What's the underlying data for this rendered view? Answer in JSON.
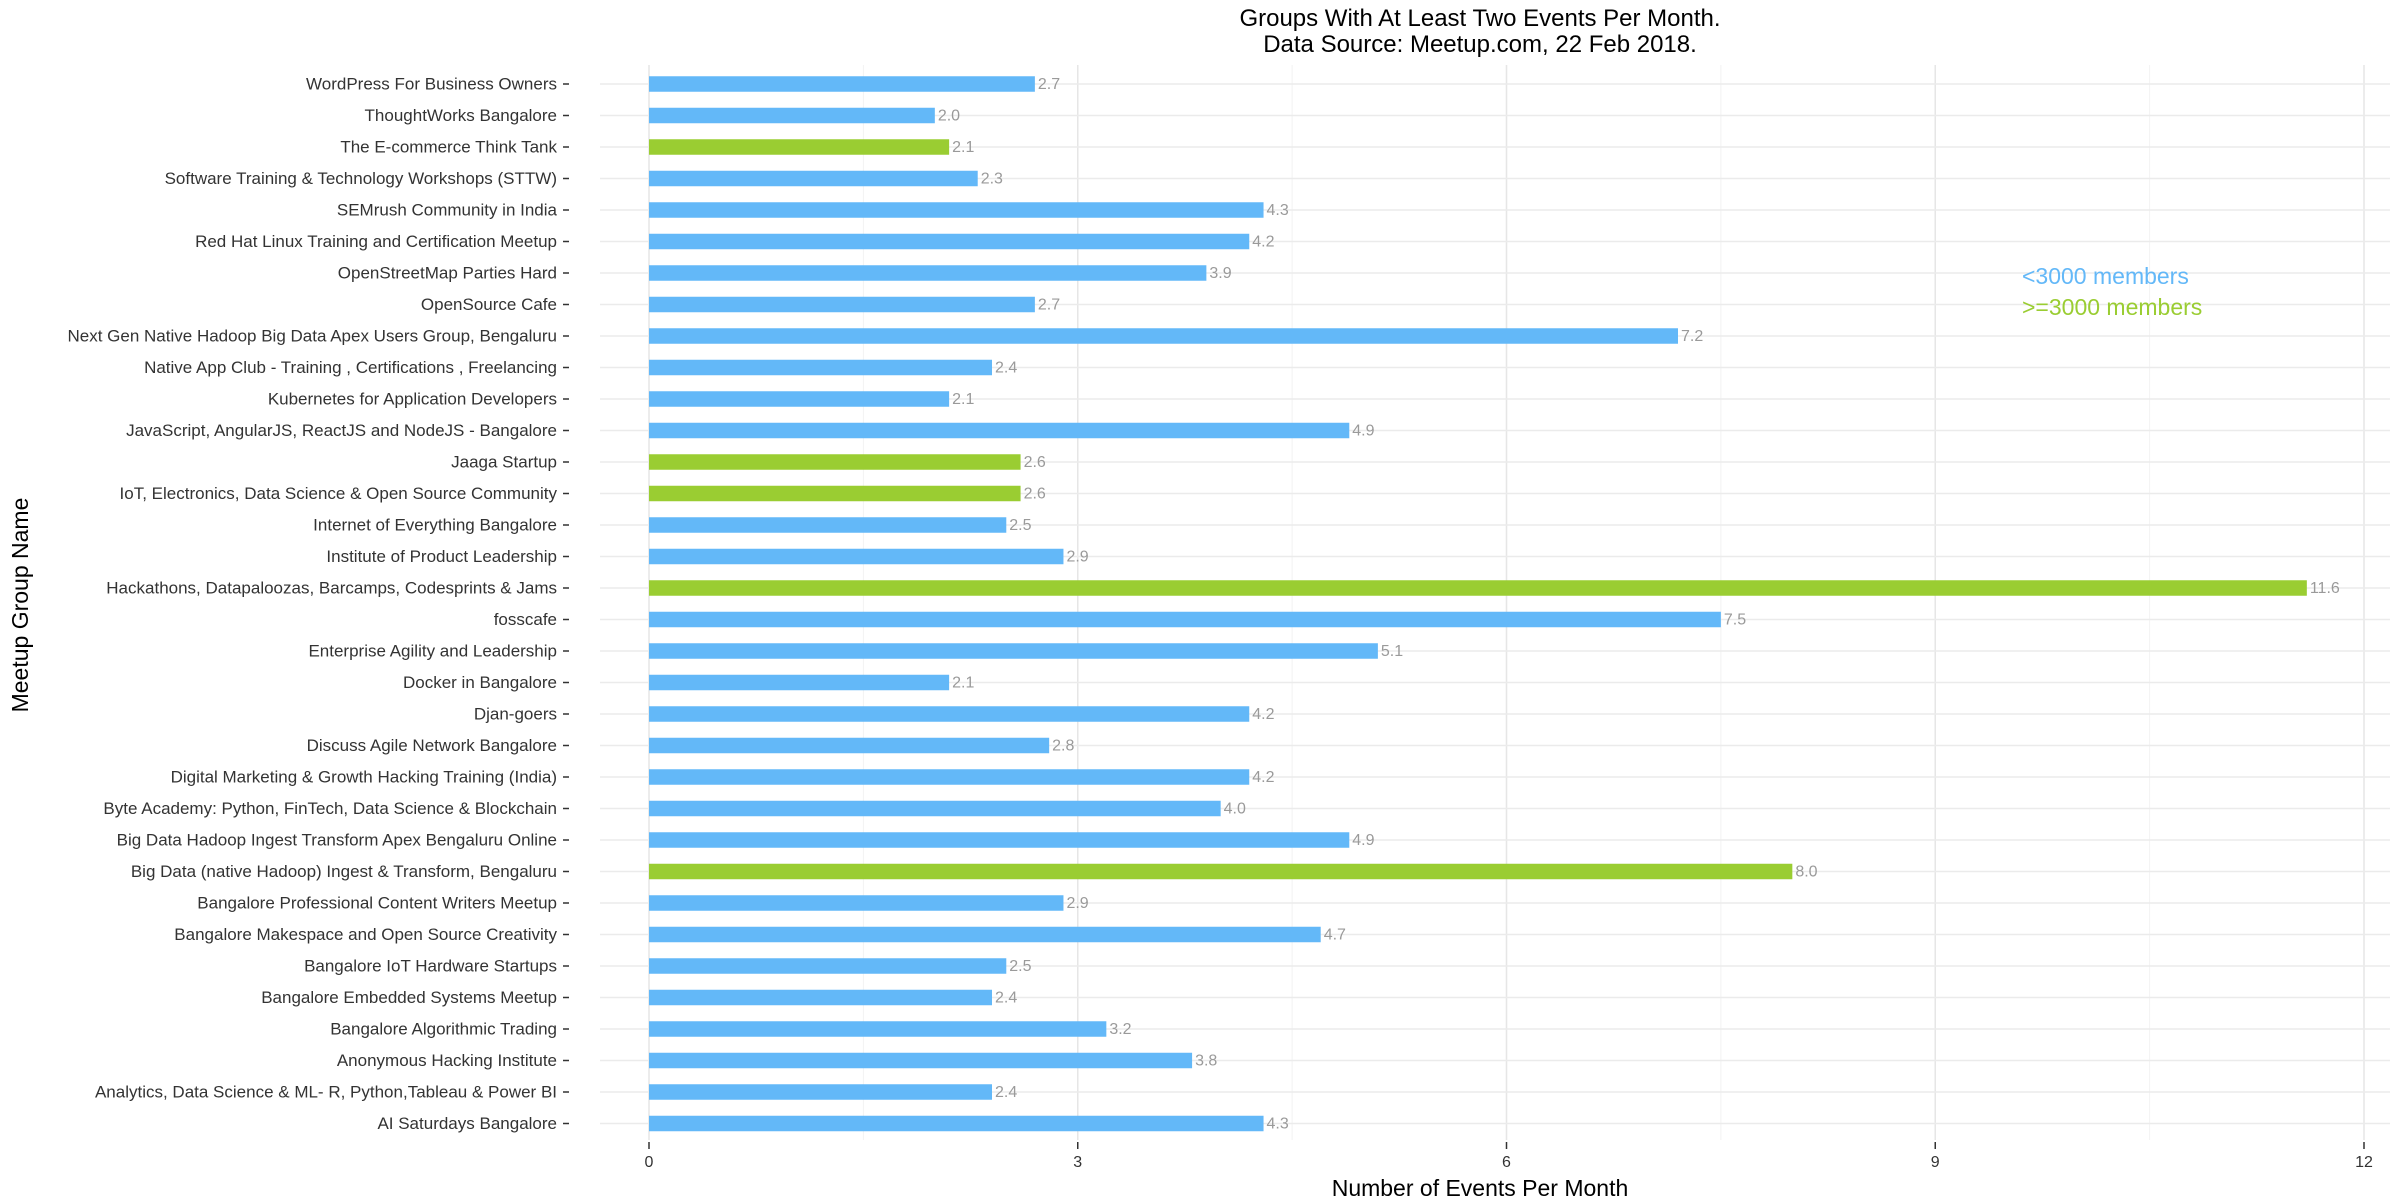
{
  "chart_data": {
    "type": "bar",
    "orientation": "horizontal",
    "title": "Groups With At Least Two Events Per Month.",
    "subtitle": "Data Source: Meetup.com, 22 Feb 2018.",
    "xlabel": "Number of Events Per Month",
    "ylabel": "Meetup Group Name",
    "xlim": [
      0,
      12
    ],
    "x_ticks": [
      0,
      3,
      6,
      9,
      12
    ],
    "grid": true,
    "legend": {
      "placement": "right",
      "entries": [
        {
          "key": "small",
          "label": "<3000 members",
          "color": "#63b8f8"
        },
        {
          "key": "large",
          "label": ">=3000 members",
          "color": "#9acd32"
        }
      ]
    },
    "bars": [
      {
        "label": "WordPress For Business Owners",
        "value": 2.7,
        "group": "small"
      },
      {
        "label": "ThoughtWorks Bangalore",
        "value": 2.0,
        "group": "small"
      },
      {
        "label": "The E-commerce Think Tank",
        "value": 2.1,
        "group": "large"
      },
      {
        "label": "Software Training & Technology Workshops (STTW)",
        "value": 2.3,
        "group": "small"
      },
      {
        "label": "SEMrush Community in India",
        "value": 4.3,
        "group": "small"
      },
      {
        "label": "Red Hat Linux Training and Certification Meetup",
        "value": 4.2,
        "group": "small"
      },
      {
        "label": "OpenStreetMap Parties Hard",
        "value": 3.9,
        "group": "small"
      },
      {
        "label": "OpenSource Cafe",
        "value": 2.7,
        "group": "small"
      },
      {
        "label": "Next Gen Native Hadoop Big Data Apex Users Group, Bengaluru",
        "value": 7.2,
        "group": "small"
      },
      {
        "label": "Native App Club - Training , Certifications , Freelancing",
        "value": 2.4,
        "group": "small"
      },
      {
        "label": "Kubernetes for Application Developers",
        "value": 2.1,
        "group": "small"
      },
      {
        "label": "JavaScript, AngularJS, ReactJS and NodeJS - Bangalore",
        "value": 4.9,
        "group": "small"
      },
      {
        "label": "Jaaga Startup",
        "value": 2.6,
        "group": "large"
      },
      {
        "label": "IoT, Electronics, Data Science & Open Source Community",
        "value": 2.6,
        "group": "large"
      },
      {
        "label": "Internet of Everything Bangalore",
        "value": 2.5,
        "group": "small"
      },
      {
        "label": "Institute of Product Leadership",
        "value": 2.9,
        "group": "small"
      },
      {
        "label": "Hackathons, Datapaloozas, Barcamps, Codesprints & Jams",
        "value": 11.6,
        "group": "large"
      },
      {
        "label": "fosscafe",
        "value": 7.5,
        "group": "small"
      },
      {
        "label": "Enterprise Agility and Leadership",
        "value": 5.1,
        "group": "small"
      },
      {
        "label": "Docker in Bangalore",
        "value": 2.1,
        "group": "small"
      },
      {
        "label": "Djan-goers",
        "value": 4.2,
        "group": "small"
      },
      {
        "label": "Discuss Agile Network Bangalore",
        "value": 2.8,
        "group": "small"
      },
      {
        "label": "Digital Marketing & Growth Hacking Training (India)",
        "value": 4.2,
        "group": "small"
      },
      {
        "label": "Byte Academy: Python, FinTech, Data Science & Blockchain",
        "value": 4.0,
        "group": "small"
      },
      {
        "label": "Big Data Hadoop Ingest Transform Apex Bengaluru Online",
        "value": 4.9,
        "group": "small"
      },
      {
        "label": "Big Data (native Hadoop) Ingest & Transform, Bengaluru",
        "value": 8.0,
        "group": "large"
      },
      {
        "label": "Bangalore Professional Content Writers Meetup",
        "value": 2.9,
        "group": "small"
      },
      {
        "label": "Bangalore Makespace and Open Source Creativity",
        "value": 4.7,
        "group": "small"
      },
      {
        "label": "Bangalore IoT Hardware Startups",
        "value": 2.5,
        "group": "small"
      },
      {
        "label": "Bangalore Embedded Systems Meetup",
        "value": 2.4,
        "group": "small"
      },
      {
        "label": "Bangalore Algorithmic Trading",
        "value": 3.2,
        "group": "small"
      },
      {
        "label": "Anonymous Hacking Institute",
        "value": 3.8,
        "group": "small"
      },
      {
        "label": "Analytics, Data Science  & ML- R, Python,Tableau & Power BI",
        "value": 2.4,
        "group": "small"
      },
      {
        "label": "AI Saturdays Bangalore",
        "value": 4.3,
        "group": "small"
      }
    ]
  }
}
